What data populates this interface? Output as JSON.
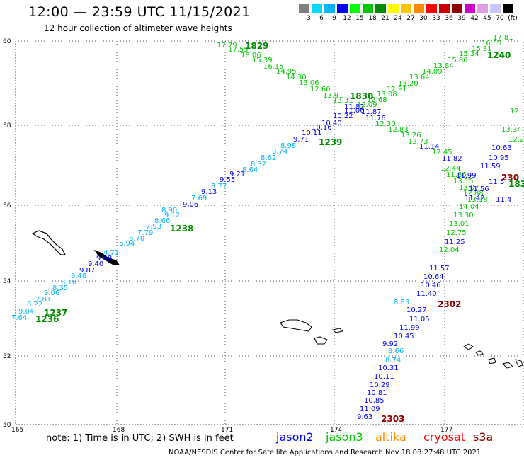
{
  "header": {
    "title": "12:00 — 23:59 UTC 11/15/2021",
    "subtitle": "12 hour collection of altimeter wave heights"
  },
  "colorbar": {
    "colors": [
      "#7f7f7f",
      "#00d8ff",
      "#00b4ff",
      "#0000ff",
      "#00ff00",
      "#00c800",
      "#008c00",
      "#ffff00",
      "#ffc800",
      "#ff8c00",
      "#ff0000",
      "#c80000",
      "#8c0000",
      "#c800c8",
      "#e19ee1",
      "#c8c8ff",
      "#000000"
    ],
    "labels": [
      "3",
      "6",
      "9",
      "12",
      "15",
      "18",
      "21",
      "24",
      "27",
      "30",
      "33",
      "36",
      "39",
      "42",
      "45",
      "70",
      "(ft)"
    ]
  },
  "axes": {
    "lat_labels": [
      "60",
      "58",
      "56",
      "54",
      "52",
      "50"
    ],
    "lon_labels": [
      "165",
      "168",
      "171",
      "174",
      "177"
    ]
  },
  "tracks": [
    {
      "color": "#00b4ff",
      "values": [
        "7.64",
        "9.04",
        "8.22",
        "7.81",
        "9.06",
        "8.35",
        "8.16",
        "8.48"
      ]
    },
    {
      "color": "#0000ff",
      "values": [
        "9.87",
        "9.40",
        "9.48"
      ]
    },
    {
      "color": "#00b4ff",
      "values": [
        "4.71",
        "5.94",
        "6.70",
        "7.79",
        "7.93",
        "8.66",
        "8.90",
        "9.12"
      ]
    },
    {
      "color": "#0000ff",
      "values": [
        "9.06",
        "9.13"
      ]
    },
    {
      "color": "#00b4ff",
      "values": [
        "7.69",
        "8.77"
      ]
    },
    {
      "color": "#0000ff",
      "values": [
        "9.55",
        "9.21"
      ]
    },
    {
      "color": "#00b4ff",
      "values": [
        "8.64",
        "8.32",
        "8.62",
        "8.74",
        "8.98"
      ]
    },
    {
      "color": "#0000ff",
      "values": [
        "9.71",
        "10.11",
        "10.16",
        "10.40",
        "10.22",
        "11.06",
        "11.82",
        "11.87",
        "11.76"
      ]
    },
    {
      "color": "#00c800",
      "values": [
        "17.79",
        "17.55",
        "18.06",
        "15.39",
        "16.15",
        "14.95",
        "14.30",
        "13.06",
        "12.60",
        "13.91",
        "13.31",
        "12.09",
        "12.68",
        "13.08",
        "12.91",
        "13.20",
        "13.64",
        "14.09",
        "13.84",
        "15.86",
        "15.34",
        "15.31",
        "16.55",
        "17.81"
      ]
    },
    {
      "color": "#00c800",
      "values": [
        "12.30",
        "12.83",
        "13.26",
        "12.73",
        "12.45",
        "12.44",
        "11.86",
        "13.15",
        "13.07",
        "12.88",
        "13.18",
        "14.04",
        "13.30",
        "13.01",
        "12.75",
        "12.04",
        "13.34",
        "12.2",
        "12"
      ]
    },
    {
      "color": "#0000ff",
      "values": [
        "11.14",
        "11.82",
        "11.99",
        "11.56",
        "11.42",
        "10.63",
        "10.95",
        "11.59",
        "11.5",
        "11.4",
        "11.25",
        "11.57",
        "10.64",
        "10.46",
        "11.40",
        "10.27",
        "11.05",
        "11.99",
        "10.45",
        "9.92",
        "10.31",
        "10.11",
        "10.29",
        "10.81",
        "10.85",
        "11.09",
        "9.63"
      ]
    },
    {
      "color": "#00b4ff",
      "values": [
        "8.83",
        "8.66",
        "8.74"
      ]
    }
  ],
  "time_labels": [
    {
      "text": "1829",
      "color": "#008c00"
    },
    {
      "text": "1830",
      "color": "#008c00"
    },
    {
      "text": "1240",
      "color": "#008c00"
    },
    {
      "text": "1239",
      "color": "#008c00"
    },
    {
      "text": "1238",
      "color": "#008c00"
    },
    {
      "text": "1237",
      "color": "#008c00"
    },
    {
      "text": "1236",
      "color": "#008c00"
    },
    {
      "text": "230",
      "color": "#8c0000"
    },
    {
      "text": "183",
      "color": "#008c00"
    },
    {
      "text": "2302",
      "color": "#8c0000"
    },
    {
      "text": "2303",
      "color": "#8c0000"
    }
  ],
  "footer": {
    "note": "note:  1) Time is in UTC;  2) SWH is in feet",
    "legend": [
      {
        "label": "jason2",
        "color": "#0000ff"
      },
      {
        "label": "jason3",
        "color": "#00c800"
      },
      {
        "label": "altika",
        "color": "#ff8c00"
      },
      {
        "label": "cryosat",
        "color": "#ff0000"
      },
      {
        "label": "s3a",
        "color": "#8c0000"
      }
    ],
    "credit": "NOAA/NESDIS Center for Satellite Applications and Research    Nov 18 08:27:48 UTC 2021"
  }
}
